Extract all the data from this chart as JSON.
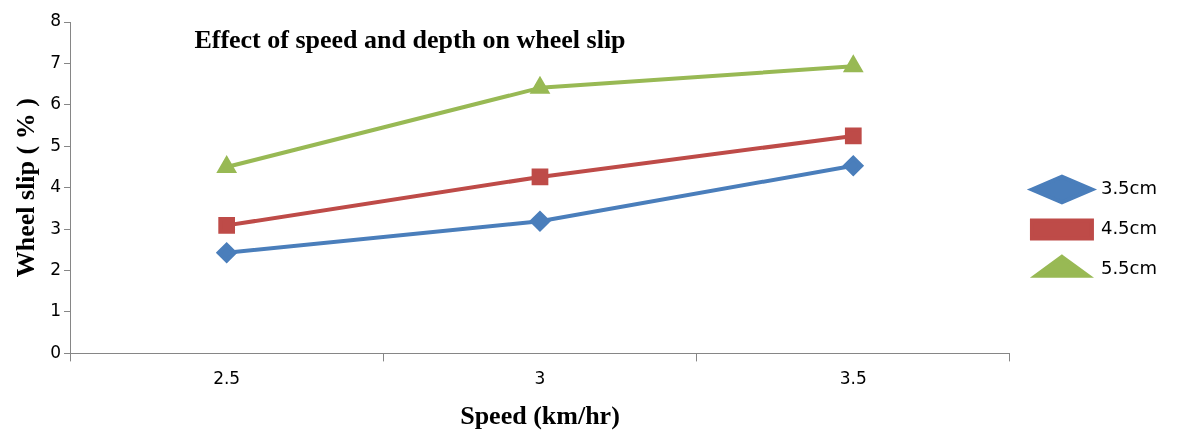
{
  "chart_data": {
    "type": "line",
    "title": "Effect of speed and depth on wheel slip",
    "xlabel": "Speed (km/hr)",
    "ylabel": "Wheel slip ( % )",
    "categories": [
      "2.5",
      "3",
      "3.5"
    ],
    "series": [
      {
        "name": "3.5cm",
        "color": "#4a7ebb",
        "values": [
          2.43,
          3.19,
          4.53
        ],
        "marker": "diamond"
      },
      {
        "name": "4.5cm",
        "color": "#be4b48",
        "values": [
          3.09,
          4.26,
          5.25
        ],
        "marker": "square"
      },
      {
        "name": "5.5cm",
        "color": "#98b954",
        "values": [
          4.5,
          6.41,
          6.93
        ],
        "marker": "triangle"
      }
    ],
    "ylim": [
      0,
      8
    ],
    "yticks": [
      0,
      1,
      2,
      3,
      4,
      5,
      6,
      7,
      8
    ],
    "grid": false,
    "legend": "right",
    "line_style": "solid"
  }
}
